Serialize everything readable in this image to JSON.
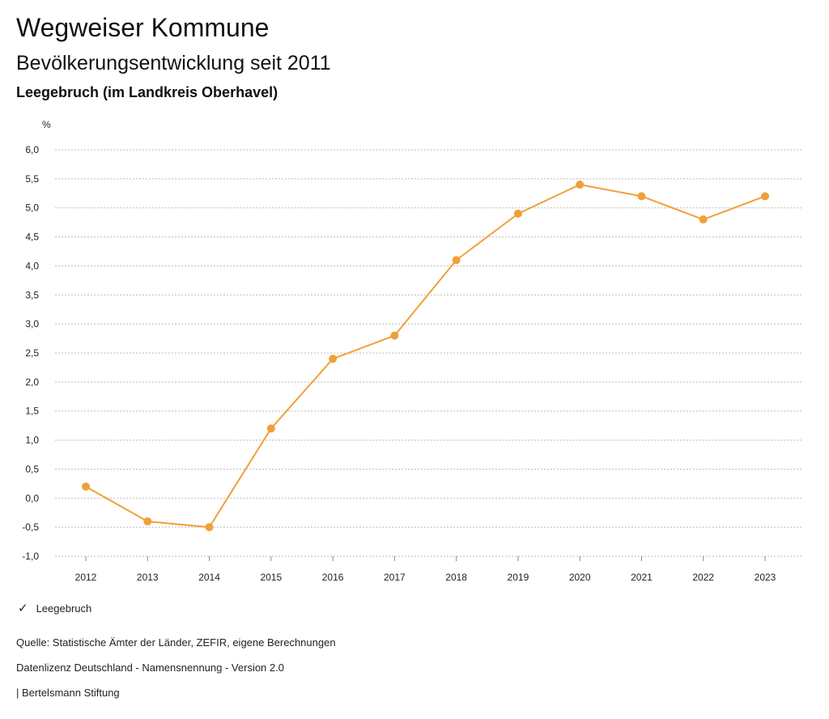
{
  "header": {
    "title": "Wegweiser Kommune",
    "subtitle": "Bevölkerungsentwicklung seit 2011",
    "region": "Leegebruch (im Landkreis Oberhavel)"
  },
  "footer": {
    "source": "Quelle: Statistische Ämter der Länder, ZEFIR, eigene Berechnungen",
    "license": "Datenlizenz Deutschland - Namensnennung - Version 2.0",
    "publisher": "| Bertelsmann Stiftung"
  },
  "colors": {
    "series": "#f0a03a",
    "grid": "#bbbbbb",
    "axis": "#888888"
  },
  "chart_data": {
    "type": "line",
    "ylabel": "%",
    "xlabel": "",
    "categories": [
      "2012",
      "2013",
      "2014",
      "2015",
      "2016",
      "2017",
      "2018",
      "2019",
      "2020",
      "2021",
      "2022",
      "2023"
    ],
    "ylim": [
      -1.0,
      6.0
    ],
    "yticks": [
      "-1,0",
      "-0,5",
      "0,0",
      "0,5",
      "1,0",
      "1,5",
      "2,0",
      "2,5",
      "3,0",
      "3,5",
      "4,0",
      "4,5",
      "5,0",
      "5,5",
      "6,0"
    ],
    "grid": true,
    "legend_position": "bottom-left",
    "series": [
      {
        "name": "Leegebruch",
        "values": [
          0.2,
          -0.4,
          -0.5,
          1.2,
          2.4,
          2.8,
          4.1,
          4.9,
          5.4,
          5.2,
          4.8,
          5.2
        ]
      }
    ]
  }
}
